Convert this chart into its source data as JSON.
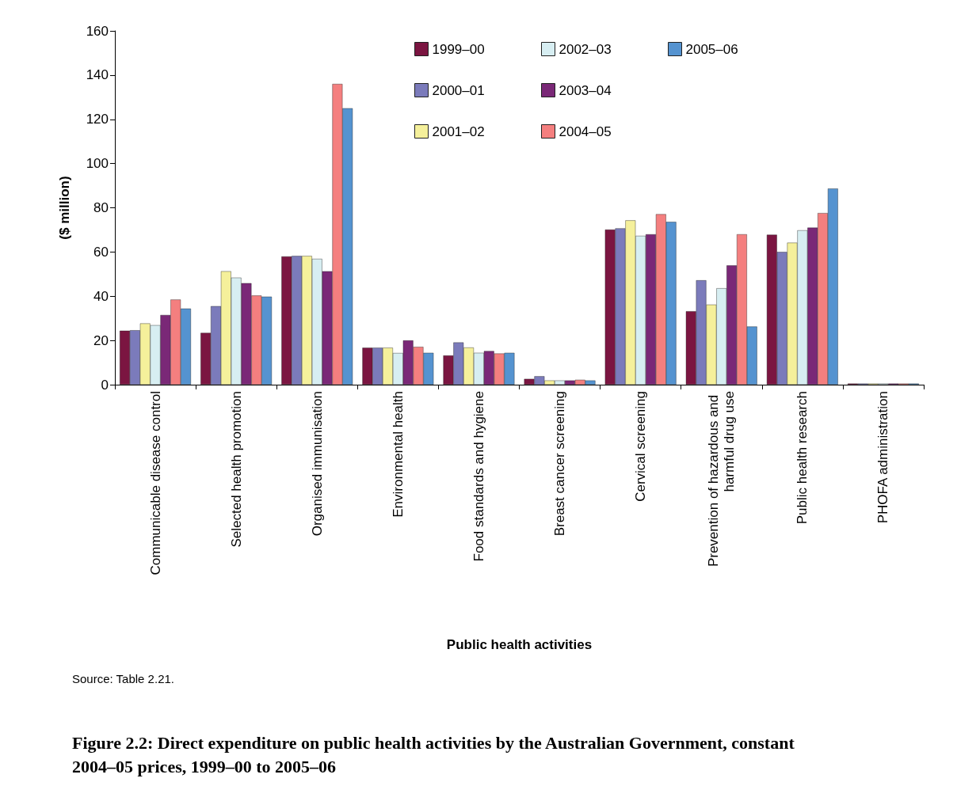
{
  "chart_data": {
    "type": "bar",
    "title": "Figure 2.2: Direct expenditure on public health activities by the Australian Government, constant 2004–05 prices, 1999–00 to 2005–06",
    "xlabel": "Public health activities",
    "ylabel": "($ million)",
    "annotations": [
      "Source: Table 2.21."
    ],
    "categories": [
      "Communicable disease control",
      "Selected health promotion",
      "Organised immunisation",
      "Environmental health",
      "Food standards and hygiene",
      "Breast cancer screening",
      "Cervical screening",
      "Prevention of hazardous and harmful drug use",
      "Public health research",
      "PHOFA administration"
    ],
    "series": [
      {
        "name": "1999–00",
        "color": "#7b1541",
        "values": [
          24.4,
          23.4,
          58,
          16.7,
          13.2,
          2.6,
          70.1,
          33.2,
          67.8,
          0.5
        ]
      },
      {
        "name": "2000–01",
        "color": "#7b7bbb",
        "values": [
          24.6,
          35.5,
          58.2,
          16.7,
          19.1,
          3.8,
          70.7,
          47.2,
          60,
          0.5
        ]
      },
      {
        "name": "2001–02",
        "color": "#f5f09b",
        "values": [
          27.7,
          51.3,
          58.2,
          16.7,
          16.8,
          1.9,
          74.3,
          36.2,
          64.2,
          0.5
        ]
      },
      {
        "name": "2002–03",
        "color": "#d7eef2",
        "values": [
          26.9,
          48.4,
          56.9,
          14.3,
          14.4,
          1.9,
          67.3,
          43.6,
          69.8,
          0.5
        ]
      },
      {
        "name": "2003–04",
        "color": "#7a2877",
        "values": [
          31.5,
          45.9,
          51.3,
          20,
          15.2,
          1.9,
          68,
          53.9,
          71,
          0.5
        ]
      },
      {
        "name": "2004–05",
        "color": "#f47f7f",
        "values": [
          38.5,
          40.3,
          136,
          17.1,
          14.1,
          2.2,
          77.1,
          68,
          77.6,
          0.5
        ]
      },
      {
        "name": "2005–06",
        "color": "#5593d0",
        "values": [
          34.4,
          39.8,
          125,
          14.4,
          14.4,
          1.9,
          73.6,
          26.3,
          88.7,
          0.5
        ]
      }
    ],
    "ylim": [
      0,
      160
    ],
    "yticks": [
      0,
      20,
      40,
      60,
      80,
      100,
      120,
      140,
      160
    ],
    "grid": false,
    "legend": "top"
  }
}
